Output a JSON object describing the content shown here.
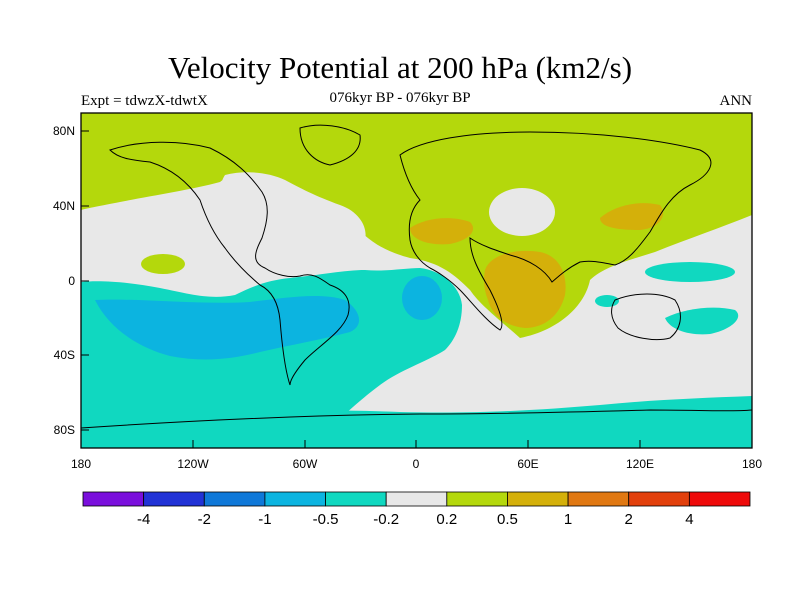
{
  "title": "Velocity Potential at 200 hPa (km2/s)",
  "subtitle_left": "Expt = tdwzX-tdwtX",
  "subtitle_center": "076kyr BP - 076kyr BP",
  "subtitle_right": "ANN",
  "lat_labels": [
    "80N",
    "40N",
    "0",
    "40S",
    "80S"
  ],
  "lon_labels": [
    "180",
    "120W",
    "60W",
    "0",
    "60E",
    "120E",
    "180"
  ],
  "colorbar": {
    "colors": [
      "#7a0fdc",
      "#2233d6",
      "#0f78d8",
      "#0cb4e0",
      "#10d8c0",
      "#e8e8e8",
      "#b4d80c",
      "#d4b00a",
      "#e07812",
      "#e2400c",
      "#ee0a0a",
      "#ee0a0a"
    ],
    "labels": [
      "-4",
      "-2",
      "-1",
      "-0.5",
      "-0.2",
      "0.2",
      "0.5",
      "1",
      "2",
      "4"
    ]
  },
  "chart_data": {
    "type": "heatmap",
    "title": "Velocity Potential at 200 hPa (km2/s)",
    "xlabel": "",
    "ylabel": "",
    "x_range": [
      -180,
      180
    ],
    "y_range": [
      -90,
      90
    ],
    "contour_levels": [
      -4,
      -2,
      -1,
      -0.5,
      -0.2,
      0.2,
      0.5,
      1,
      2,
      4
    ],
    "regions": [
      {
        "name": "northern extratropics",
        "class": "0.2 to 0.5"
      },
      {
        "name": "north Africa / Middle East max",
        "class": "0.5 to 1"
      },
      {
        "name": "East Asia max",
        "class": "0.5 to 1"
      },
      {
        "name": "equatorial east Africa / Indian Ocean",
        "class": "0.5 to 1"
      },
      {
        "name": "tropical Pacific / South America",
        "class": "-0.5 to -0.2"
      },
      {
        "name": "central South Pacific",
        "class": "-1 to -0.5"
      },
      {
        "name": "South Atlantic / southern Indian Ocean",
        "class": "-0.2 to 0.2"
      },
      {
        "name": "Southern Ocean ring",
        "class": "-0.5 to -0.2"
      }
    ]
  }
}
